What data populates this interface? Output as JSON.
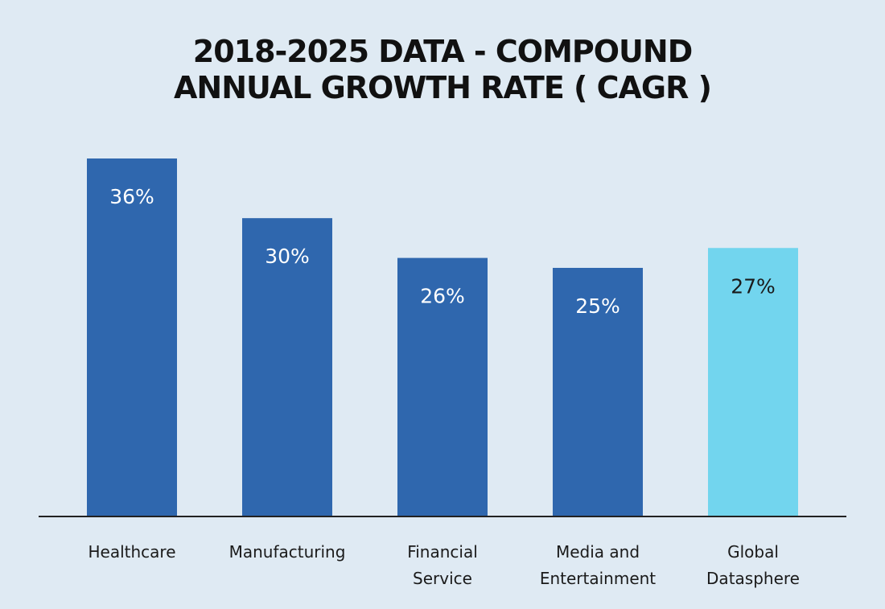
{
  "chart_data": {
    "type": "bar",
    "title_lines": [
      "2018-2025 DATA - COMPOUND",
      "ANNUAL GROWTH RATE ( CAGR )"
    ],
    "categories": [
      [
        "Healthcare"
      ],
      [
        "Manufacturing"
      ],
      [
        "Financial",
        "Service"
      ],
      [
        "Media and",
        "Entertainment"
      ],
      [
        "Global",
        "Datasphere"
      ]
    ],
    "values": [
      36,
      30,
      26,
      25,
      27
    ],
    "value_labels": [
      "36%",
      "30%",
      "26%",
      "25%",
      "27%"
    ],
    "bar_colors": [
      "#2f67ae",
      "#2f67ae",
      "#2f67ae",
      "#2f67ae",
      "#72d5ee"
    ],
    "label_colors": [
      "#ffffff",
      "#ffffff",
      "#ffffff",
      "#ffffff",
      "#1a1a1a"
    ],
    "xlabel": "",
    "ylabel": "",
    "ylim": [
      0,
      36
    ],
    "grid": false,
    "legend": "none"
  },
  "colors": {
    "background": "#dfeaf3",
    "axis": "#222222"
  }
}
